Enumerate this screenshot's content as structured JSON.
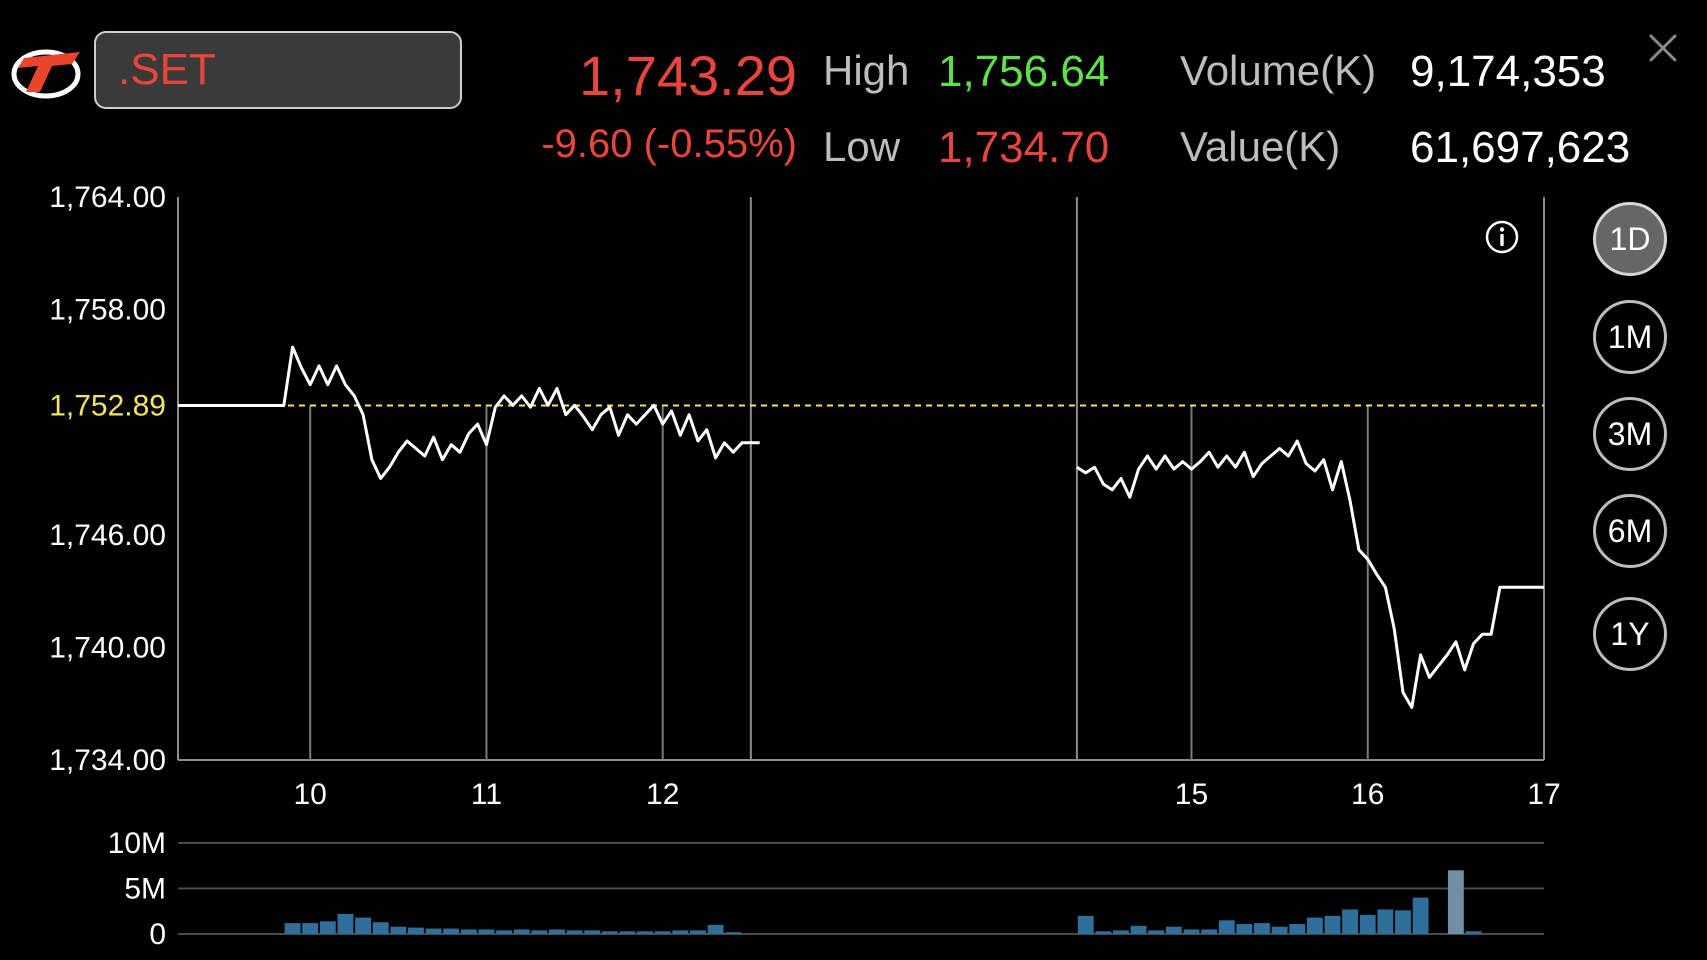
{
  "header": {
    "symbol": ".SET",
    "last_price": "1,743.29",
    "change": "-9.60 (-0.55%)",
    "high_label": "High",
    "high_value": "1,756.64",
    "low_label": "Low",
    "low_value": "1,734.70",
    "volume_label": "Volume(K)",
    "volume_value": "9,174,353",
    "value_label": "Value(K)",
    "value_value": "61,697,623"
  },
  "colors": {
    "down": "#e8453c",
    "up": "#5fe04a",
    "reference": "#f2e65a",
    "volume_bar": "#2f6f9a",
    "volume_bar_last": "#6f8ea4"
  },
  "icons": {
    "logo": "brand-logo",
    "close": "close-icon",
    "info": "info-icon"
  },
  "range_buttons": [
    {
      "label": "1D",
      "active": true
    },
    {
      "label": "1M",
      "active": false
    },
    {
      "label": "3M",
      "active": false
    },
    {
      "label": "6M",
      "active": false
    },
    {
      "label": "1Y",
      "active": false
    }
  ],
  "chart_data": {
    "type": "line",
    "y_ticks": [
      "1,764.00",
      "1,758.00",
      "1,746.00",
      "1,740.00",
      "1,734.00"
    ],
    "reference_label": "1,752.89",
    "ylim": [
      1734,
      1764
    ],
    "reference_value": 1752.89,
    "x_ticks": [
      {
        "label": "10",
        "x": 10
      },
      {
        "label": "11",
        "x": 11
      },
      {
        "label": "12",
        "x": 12
      },
      {
        "label": "15",
        "x": 15
      },
      {
        "label": "16",
        "x": 16
      },
      {
        "label": "17",
        "x": 17
      }
    ],
    "xlim": [
      9.25,
      17
    ],
    "lunch_break": [
      12.5,
      14.35
    ],
    "series": [
      {
        "segment": "morning",
        "points": [
          [
            9.25,
            1752.89
          ],
          [
            9.85,
            1752.89
          ],
          [
            9.9,
            1756.0
          ],
          [
            9.95,
            1754.9
          ],
          [
            10.0,
            1754.0
          ],
          [
            10.05,
            1755.0
          ],
          [
            10.1,
            1754.0
          ],
          [
            10.15,
            1755.0
          ],
          [
            10.2,
            1754.0
          ],
          [
            10.25,
            1753.4
          ],
          [
            10.3,
            1752.4
          ],
          [
            10.35,
            1750.0
          ],
          [
            10.4,
            1749.0
          ],
          [
            10.45,
            1749.6
          ],
          [
            10.5,
            1750.4
          ],
          [
            10.55,
            1751.0
          ],
          [
            10.6,
            1750.6
          ],
          [
            10.65,
            1750.2
          ],
          [
            10.7,
            1751.2
          ],
          [
            10.75,
            1750.0
          ],
          [
            10.8,
            1750.8
          ],
          [
            10.85,
            1750.4
          ],
          [
            10.9,
            1751.4
          ],
          [
            10.95,
            1751.9
          ],
          [
            11.0,
            1750.8
          ],
          [
            11.05,
            1752.8
          ],
          [
            11.1,
            1753.4
          ],
          [
            11.15,
            1752.9
          ],
          [
            11.2,
            1753.4
          ],
          [
            11.25,
            1752.8
          ],
          [
            11.3,
            1753.8
          ],
          [
            11.35,
            1752.9
          ],
          [
            11.4,
            1753.8
          ],
          [
            11.45,
            1752.4
          ],
          [
            11.5,
            1752.9
          ],
          [
            11.55,
            1752.3
          ],
          [
            11.6,
            1751.6
          ],
          [
            11.65,
            1752.4
          ],
          [
            11.7,
            1752.8
          ],
          [
            11.75,
            1751.3
          ],
          [
            11.8,
            1752.4
          ],
          [
            11.85,
            1751.9
          ],
          [
            11.9,
            1752.4
          ],
          [
            11.95,
            1752.9
          ],
          [
            12.0,
            1751.9
          ],
          [
            12.05,
            1752.6
          ],
          [
            12.1,
            1751.3
          ],
          [
            12.15,
            1752.4
          ],
          [
            12.2,
            1751.0
          ],
          [
            12.25,
            1751.6
          ],
          [
            12.3,
            1750.1
          ],
          [
            12.35,
            1750.9
          ],
          [
            12.4,
            1750.4
          ],
          [
            12.45,
            1750.9
          ],
          [
            12.55,
            1750.9
          ]
        ]
      },
      {
        "segment": "afternoon",
        "points": [
          [
            14.35,
            1749.6
          ],
          [
            14.4,
            1749.3
          ],
          [
            14.45,
            1749.6
          ],
          [
            14.5,
            1748.7
          ],
          [
            14.55,
            1748.4
          ],
          [
            14.6,
            1749.0
          ],
          [
            14.65,
            1748.0
          ],
          [
            14.7,
            1749.5
          ],
          [
            14.75,
            1750.2
          ],
          [
            14.8,
            1749.5
          ],
          [
            14.85,
            1750.2
          ],
          [
            14.9,
            1749.5
          ],
          [
            14.95,
            1749.9
          ],
          [
            15.0,
            1749.5
          ],
          [
            15.05,
            1749.9
          ],
          [
            15.1,
            1750.4
          ],
          [
            15.15,
            1749.6
          ],
          [
            15.2,
            1750.2
          ],
          [
            15.25,
            1749.6
          ],
          [
            15.3,
            1750.4
          ],
          [
            15.35,
            1749.1
          ],
          [
            15.4,
            1749.8
          ],
          [
            15.45,
            1750.2
          ],
          [
            15.5,
            1750.6
          ],
          [
            15.55,
            1750.2
          ],
          [
            15.6,
            1751.0
          ],
          [
            15.65,
            1749.8
          ],
          [
            15.7,
            1749.4
          ],
          [
            15.75,
            1750.0
          ],
          [
            15.8,
            1748.4
          ],
          [
            15.85,
            1749.9
          ],
          [
            15.9,
            1747.8
          ],
          [
            15.95,
            1745.2
          ],
          [
            16.0,
            1744.7
          ],
          [
            16.05,
            1743.9
          ],
          [
            16.1,
            1743.2
          ],
          [
            16.15,
            1741.0
          ],
          [
            16.2,
            1737.6
          ],
          [
            16.25,
            1736.8
          ],
          [
            16.3,
            1739.6
          ],
          [
            16.35,
            1738.4
          ],
          [
            16.4,
            1739.0
          ],
          [
            16.45,
            1739.6
          ],
          [
            16.5,
            1740.3
          ],
          [
            16.55,
            1738.8
          ],
          [
            16.6,
            1740.2
          ],
          [
            16.65,
            1740.7
          ],
          [
            16.7,
            1740.7
          ],
          [
            16.75,
            1743.2
          ],
          [
            17.0,
            1743.2
          ]
        ]
      }
    ],
    "volume": {
      "y_ticks": [
        "10M",
        "5M",
        "0"
      ],
      "ylim": [
        0,
        10
      ],
      "unit": "M",
      "bars": [
        [
          9.9,
          1.2
        ],
        [
          10.0,
          1.2
        ],
        [
          10.1,
          1.4
        ],
        [
          10.2,
          2.2
        ],
        [
          10.3,
          1.8
        ],
        [
          10.4,
          1.3
        ],
        [
          10.5,
          0.8
        ],
        [
          10.6,
          0.7
        ],
        [
          10.7,
          0.6
        ],
        [
          10.8,
          0.6
        ],
        [
          10.9,
          0.5
        ],
        [
          11.0,
          0.5
        ],
        [
          11.1,
          0.4
        ],
        [
          11.2,
          0.5
        ],
        [
          11.3,
          0.4
        ],
        [
          11.4,
          0.5
        ],
        [
          11.5,
          0.4
        ],
        [
          11.6,
          0.4
        ],
        [
          11.7,
          0.3
        ],
        [
          11.8,
          0.3
        ],
        [
          11.9,
          0.3
        ],
        [
          12.0,
          0.3
        ],
        [
          12.1,
          0.4
        ],
        [
          12.2,
          0.4
        ],
        [
          12.3,
          1.0
        ],
        [
          12.4,
          0.2
        ],
        [
          14.4,
          2.0
        ],
        [
          14.5,
          0.3
        ],
        [
          14.6,
          0.4
        ],
        [
          14.7,
          0.9
        ],
        [
          14.8,
          0.4
        ],
        [
          14.9,
          0.8
        ],
        [
          15.0,
          0.5
        ],
        [
          15.1,
          0.5
        ],
        [
          15.2,
          1.5
        ],
        [
          15.3,
          1.1
        ],
        [
          15.4,
          1.2
        ],
        [
          15.5,
          0.8
        ],
        [
          15.6,
          1.1
        ],
        [
          15.7,
          1.8
        ],
        [
          15.8,
          2.0
        ],
        [
          15.9,
          2.7
        ],
        [
          16.0,
          2.1
        ],
        [
          16.1,
          2.7
        ],
        [
          16.2,
          2.6
        ],
        [
          16.3,
          4.0
        ],
        [
          16.5,
          7.0
        ],
        [
          16.6,
          0.3
        ]
      ]
    }
  }
}
